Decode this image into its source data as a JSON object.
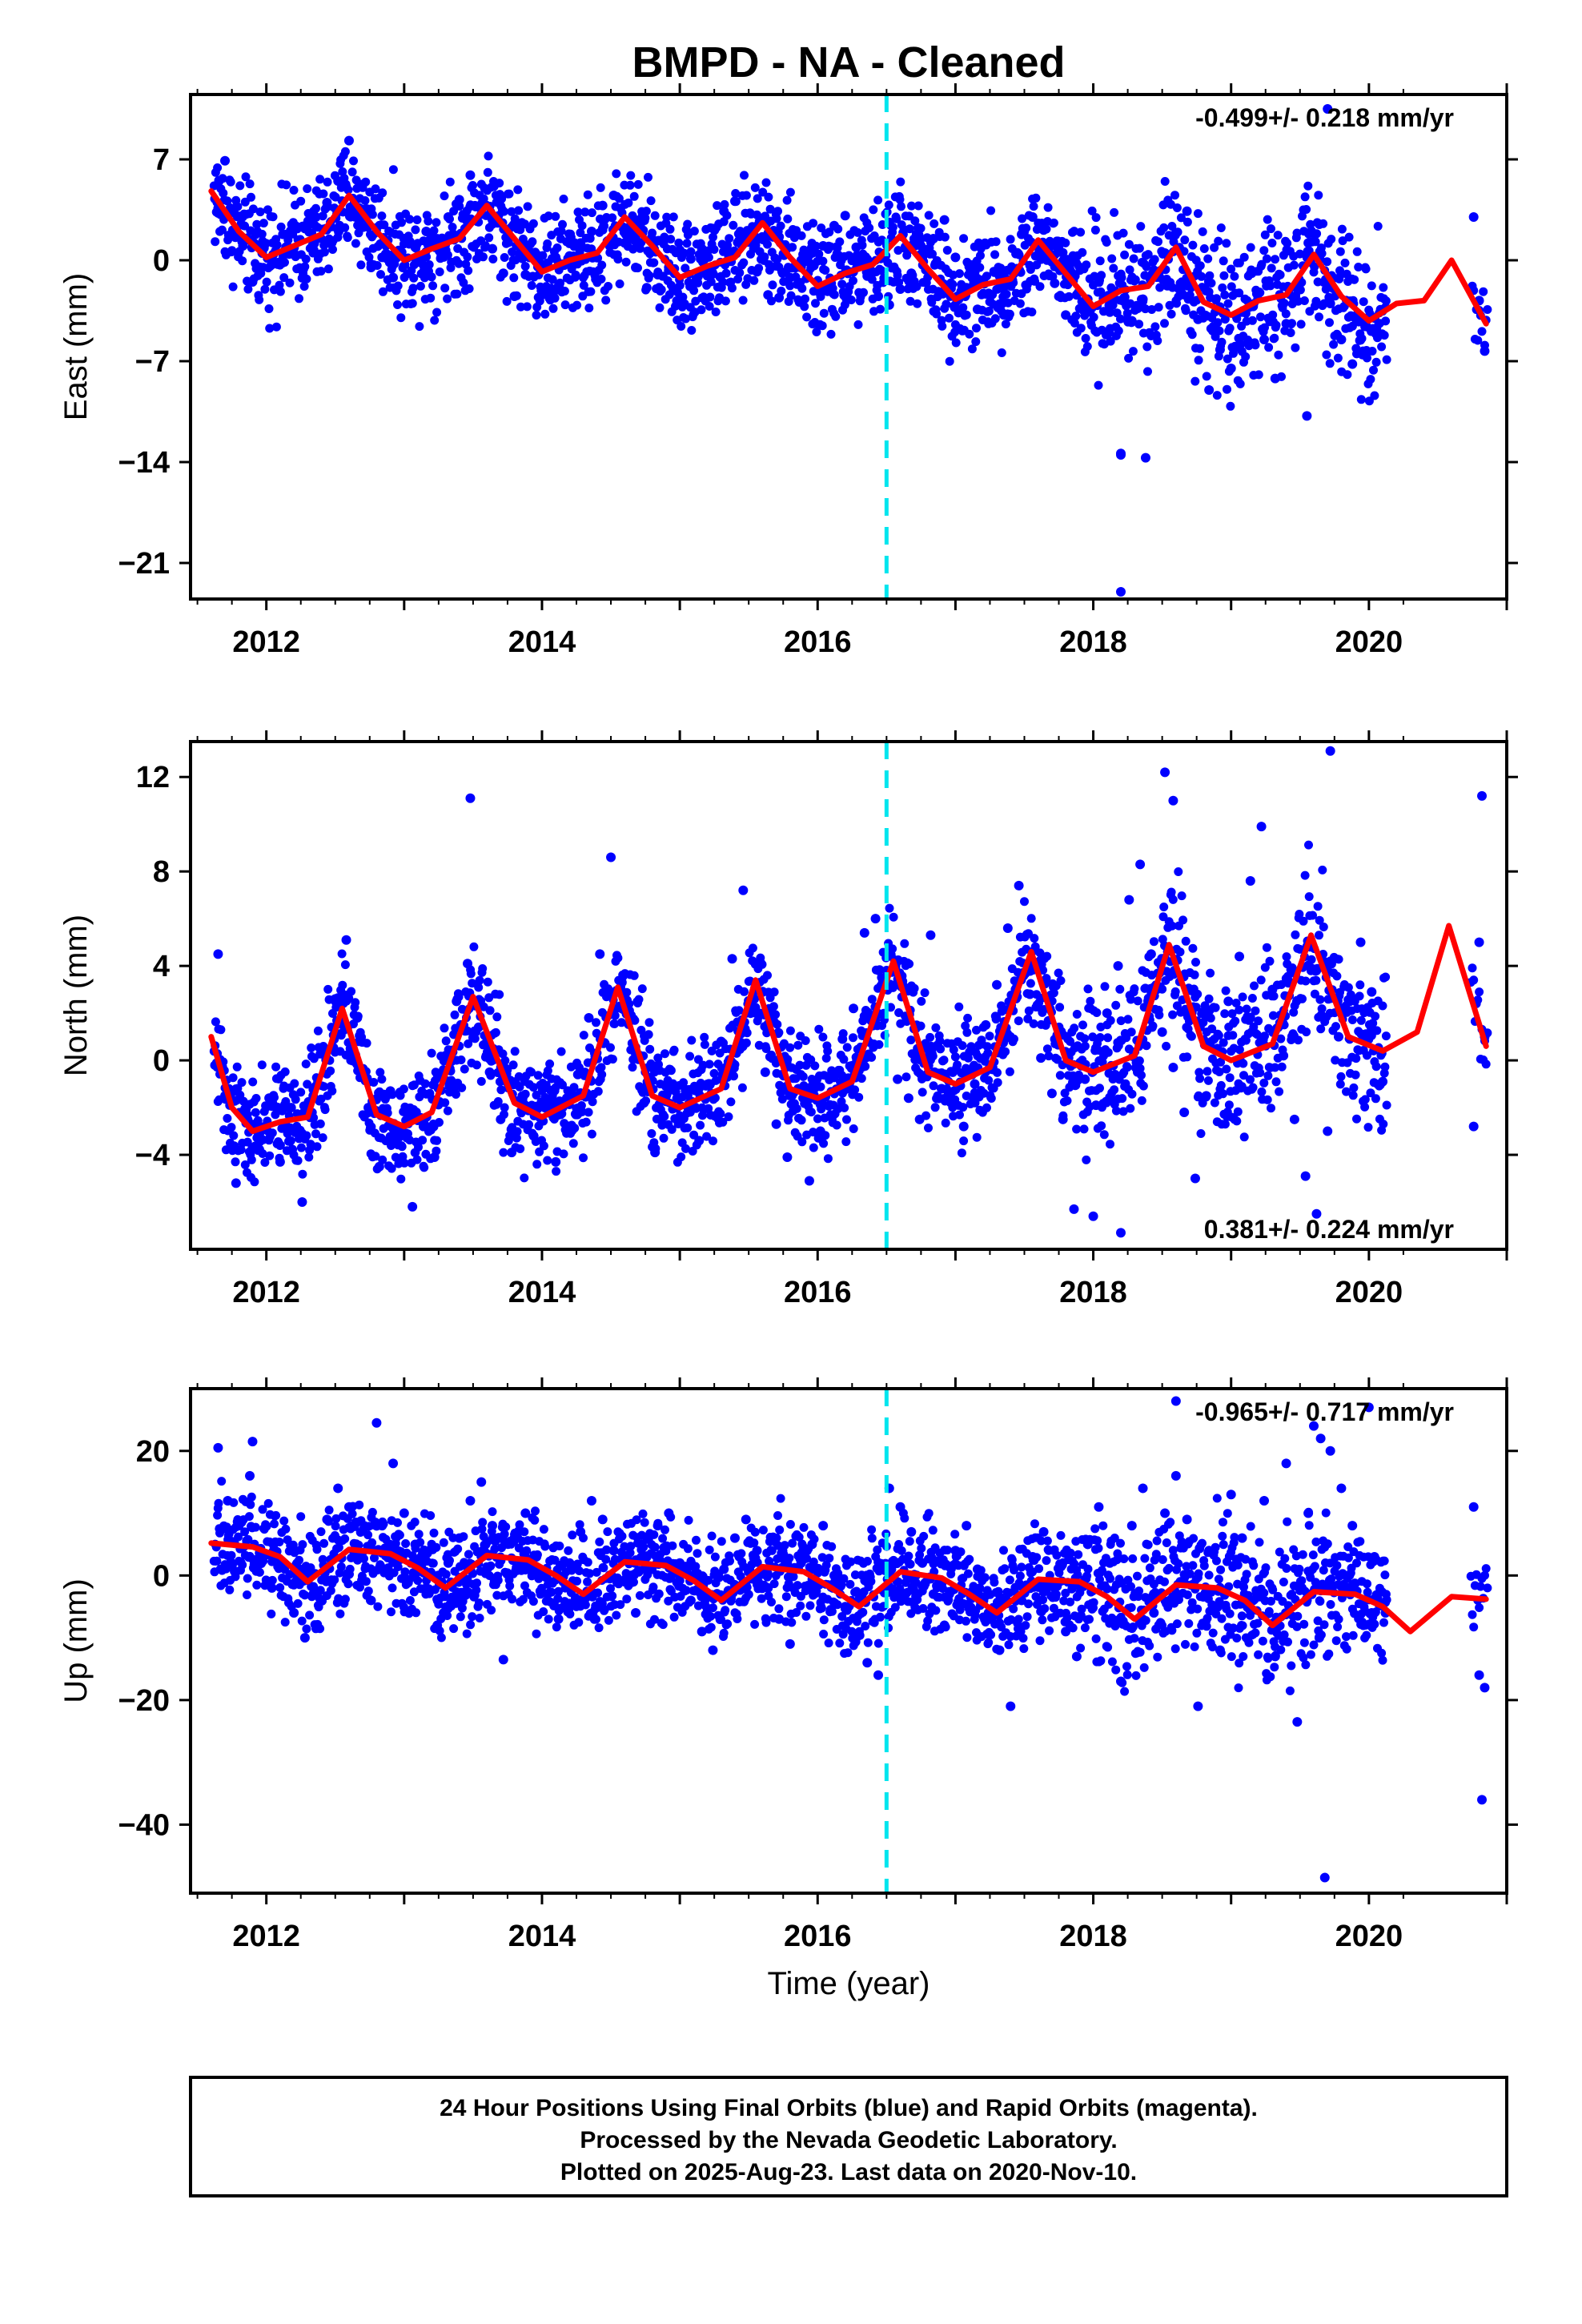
{
  "title": "BMPD  - NA - Cleaned",
  "colors": {
    "final_orbit_points": "#0000ff",
    "model_curve": "#ff0000",
    "event_line": "#00e5ee",
    "axes": "#000000"
  },
  "chart_data": [
    {
      "type": "scatter",
      "id": "east",
      "ylabel": "East (mm)",
      "xlabel": "",
      "xlim": [
        2011.45,
        2021.0
      ],
      "ylim": [
        -23.5,
        11.5
      ],
      "yticks": [
        7,
        0,
        -7,
        -14,
        -21
      ],
      "ytick_labels": [
        "7",
        "0",
        "−7",
        "−14",
        "−21"
      ],
      "xticks": [
        2012,
        2014,
        2016,
        2018,
        2020
      ],
      "xtick_labels": [
        "2012",
        "2014",
        "2016",
        "2018",
        "2020"
      ],
      "rate_text": "-0.499+/- 0.218 mm/yr",
      "rate_position": "top-right",
      "event_line_x": 2016.5,
      "model": {
        "x": [
          2011.6,
          2011.8,
          2012.0,
          2012.2,
          2012.4,
          2012.6,
          2012.8,
          2013.0,
          2013.2,
          2013.4,
          2013.6,
          2013.8,
          2014.0,
          2014.2,
          2014.4,
          2014.6,
          2014.8,
          2015.0,
          2015.2,
          2015.4,
          2015.6,
          2015.8,
          2016.0,
          2016.2,
          2016.4,
          2016.6,
          2016.8,
          2017.0,
          2017.2,
          2017.4,
          2017.6,
          2017.8,
          2018.0,
          2018.2,
          2018.4,
          2018.6,
          2018.8,
          2019.0,
          2019.2,
          2019.4,
          2019.6,
          2019.8,
          2020.0,
          2020.2,
          2020.4,
          2020.6,
          2020.85
        ],
        "y": [
          4.8,
          2.0,
          0.2,
          1.0,
          1.8,
          4.5,
          2.0,
          0.0,
          0.8,
          1.5,
          3.8,
          1.5,
          -0.8,
          0.0,
          0.5,
          3.0,
          1.0,
          -1.2,
          -0.4,
          0.2,
          2.6,
          0.2,
          -1.8,
          -0.9,
          -0.3,
          1.7,
          -0.6,
          -2.7,
          -1.7,
          -1.3,
          1.4,
          -0.9,
          -3.2,
          -2.1,
          -1.8,
          0.9,
          -2.9,
          -3.8,
          -2.8,
          -2.4,
          0.4,
          -2.5,
          -4.2,
          -3.0,
          -2.8,
          0.0,
          -4.4
        ]
      },
      "points": {
        "x": [
          2011.65,
          2011.7,
          2011.76,
          2011.83,
          2011.9,
          2011.97,
          2012.05,
          2012.12,
          2012.2,
          2012.28,
          2012.36,
          2012.44,
          2012.52,
          2012.6,
          2012.68,
          2012.76,
          2012.84,
          2012.92,
          2013.0,
          2013.08,
          2013.16,
          2013.24,
          2013.32,
          2013.4,
          2013.48,
          2013.56,
          2013.64,
          2013.72,
          2013.8,
          2013.88,
          2013.96,
          2014.04,
          2014.12,
          2014.2,
          2014.28,
          2014.36,
          2014.44,
          2014.52,
          2014.6,
          2014.68,
          2014.76,
          2014.84,
          2014.92,
          2015.0,
          2015.08,
          2015.16,
          2015.24,
          2015.32,
          2015.4,
          2015.48,
          2015.56,
          2015.64,
          2015.72,
          2015.8,
          2015.88,
          2015.96,
          2016.04,
          2016.12,
          2016.2,
          2016.28,
          2016.36,
          2016.44,
          2016.52,
          2016.6,
          2016.68,
          2016.76,
          2016.84,
          2016.92,
          2017.0,
          2017.08,
          2017.16,
          2017.24,
          2017.32,
          2017.4,
          2017.48,
          2017.56,
          2017.64,
          2017.72,
          2017.8,
          2017.88,
          2017.96,
          2018.04,
          2018.12,
          2018.2,
          2018.28,
          2018.36,
          2018.44,
          2018.52,
          2018.6,
          2018.68,
          2018.76,
          2018.84,
          2018.92,
          2019.0,
          2019.08,
          2019.16,
          2019.24,
          2019.32,
          2019.4,
          2019.48,
          2019.56,
          2019.64,
          2019.72,
          2019.8,
          2019.88,
          2019.96,
          2020.04,
          2020.12,
          2020.76,
          2020.8,
          2020.84
        ],
        "y": [
          3.6,
          6.9,
          2.0,
          1.0,
          -1.5,
          0.5,
          0.4,
          1.8,
          0.5,
          2.2,
          3.0,
          4.0,
          5.5,
          8.3,
          3.1,
          -0.5,
          0.2,
          -1.2,
          1.5,
          0.9,
          2.0,
          1.1,
          3.0,
          4.2,
          5.9,
          3.2,
          0.8,
          -0.9,
          -2.5,
          -1.0,
          0.4,
          -0.2,
          -1.8,
          0.3,
          1.2,
          2.0,
          3.8,
          4.5,
          1.2,
          -0.5,
          -1.9,
          -1.0,
          -0.5,
          0.7,
          0.1,
          0.8,
          2.2,
          3.4,
          4.1,
          1.3,
          -0.8,
          -2.4,
          -2.6,
          -1.2,
          -0.5,
          0.5,
          1.0,
          2.4,
          3.1,
          0.9,
          -1.1,
          -2.5,
          -3.1,
          -2.0,
          -0.9,
          0.2,
          1.5,
          2.8,
          0.2,
          -1.9,
          -3.4,
          -2.3,
          -1.1,
          -0.7,
          1.8,
          3.0,
          2.1,
          -1.6,
          -3.8,
          -2.4,
          -2.7,
          -1.5,
          -3.6,
          -13.5,
          -4.2,
          -2.7,
          -1.1,
          0.5,
          1.9,
          3.4,
          -4.1,
          -9.0,
          -6.2,
          -7.5,
          -3.6,
          -3.2,
          -5.5,
          -8.2,
          -4.4,
          -1.8,
          1.2,
          2.5,
          -3.0,
          -5.5,
          -7.2,
          -4.1,
          -4.0,
          -3.3,
          3.0,
          -2.8,
          -6.3
        ]
      },
      "outlier_points": {
        "x": [
          2018.2,
          2018.38,
          2018.2,
          2019.7,
          2019.55
        ],
        "y": [
          -13.4,
          -13.7,
          -23.0,
          10.5,
          -10.8
        ]
      }
    },
    {
      "type": "scatter",
      "id": "north",
      "ylabel": "North (mm)",
      "xlabel": "",
      "xlim": [
        2011.45,
        2021.0
      ],
      "ylim": [
        -8.0,
        13.5
      ],
      "yticks": [
        12,
        8,
        4,
        0,
        -4
      ],
      "ytick_labels": [
        "12",
        "8",
        "4",
        "0",
        "−4"
      ],
      "xticks": [
        2012,
        2014,
        2016,
        2018,
        2020
      ],
      "xtick_labels": [
        "2012",
        "2014",
        "2016",
        "2018",
        "2020"
      ],
      "rate_text": "0.381+/- 0.224 mm/yr",
      "rate_position": "bottom-right",
      "event_line_x": 2016.5,
      "model": {
        "x": [
          2011.6,
          2011.75,
          2011.9,
          2012.1,
          2012.3,
          2012.55,
          2012.8,
          2013.0,
          2013.2,
          2013.5,
          2013.8,
          2014.0,
          2014.3,
          2014.55,
          2014.8,
          2015.0,
          2015.3,
          2015.55,
          2015.8,
          2016.0,
          2016.25,
          2016.55,
          2016.8,
          2017.0,
          2017.25,
          2017.55,
          2017.8,
          2018.0,
          2018.3,
          2018.55,
          2018.8,
          2019.0,
          2019.3,
          2019.58,
          2019.85,
          2020.1,
          2020.35,
          2020.58,
          2020.85
        ],
        "y": [
          1.0,
          -2.0,
          -3.0,
          -2.6,
          -2.4,
          2.2,
          -2.3,
          -2.8,
          -2.2,
          2.7,
          -1.8,
          -2.4,
          -1.5,
          3.1,
          -1.5,
          -2.0,
          -1.2,
          3.4,
          -1.2,
          -1.6,
          -0.9,
          4.2,
          -0.5,
          -1.0,
          -0.3,
          4.6,
          0.0,
          -0.5,
          0.2,
          4.9,
          0.6,
          0.0,
          0.7,
          5.3,
          1.0,
          0.4,
          1.2,
          5.7,
          0.6
        ]
      },
      "points": {
        "x": [
          2011.65,
          2011.7,
          2011.78,
          2011.86,
          2011.94,
          2012.02,
          2012.1,
          2012.18,
          2012.26,
          2012.34,
          2012.42,
          2012.5,
          2012.58,
          2012.66,
          2012.74,
          2012.82,
          2012.9,
          2012.98,
          2013.06,
          2013.14,
          2013.22,
          2013.3,
          2013.38,
          2013.46,
          2013.54,
          2013.62,
          2013.7,
          2013.78,
          2013.86,
          2013.94,
          2014.02,
          2014.1,
          2014.18,
          2014.26,
          2014.34,
          2014.42,
          2014.5,
          2014.58,
          2014.66,
          2014.74,
          2014.82,
          2014.9,
          2014.98,
          2015.06,
          2015.14,
          2015.22,
          2015.3,
          2015.38,
          2015.46,
          2015.54,
          2015.62,
          2015.7,
          2015.78,
          2015.86,
          2015.94,
          2016.02,
          2016.1,
          2016.18,
          2016.26,
          2016.34,
          2016.42,
          2016.5,
          2016.58,
          2016.66,
          2016.74,
          2016.82,
          2016.9,
          2016.98,
          2017.06,
          2017.14,
          2017.22,
          2017.3,
          2017.38,
          2017.46,
          2017.54,
          2017.62,
          2017.7,
          2017.78,
          2017.86,
          2017.94,
          2018.02,
          2018.1,
          2018.18,
          2018.26,
          2018.34,
          2018.42,
          2018.5,
          2018.58,
          2018.66,
          2018.74,
          2018.82,
          2018.9,
          2018.98,
          2019.06,
          2019.14,
          2019.22,
          2019.3,
          2019.38,
          2019.46,
          2019.54,
          2019.62,
          2019.7,
          2019.78,
          2019.86,
          2019.94,
          2020.02,
          2020.1,
          2020.76,
          2020.8,
          2020.84
        ],
        "y": [
          4.5,
          -1.5,
          -5.2,
          -2.3,
          -3.8,
          -1.6,
          -4.3,
          -2.0,
          -6.0,
          -1.5,
          0.4,
          2.6,
          5.1,
          1.8,
          -2.0,
          -4.5,
          -1.3,
          -3.0,
          -6.2,
          -2.8,
          -4.1,
          0.2,
          2.5,
          4.1,
          1.4,
          -0.5,
          -2.5,
          -3.9,
          -1.6,
          -3.2,
          -2.0,
          -4.3,
          -1.6,
          -0.6,
          1.8,
          4.5,
          8.6,
          3.3,
          0.5,
          -1.8,
          -3.9,
          -1.1,
          -2.5,
          -2.0,
          -3.4,
          -1.0,
          0.8,
          4.3,
          7.2,
          2.6,
          -0.5,
          -2.7,
          -4.1,
          -1.2,
          -5.1,
          -3.0,
          -0.6,
          0.9,
          2.2,
          5.4,
          6.0,
          3.8,
          -0.8,
          -1.6,
          -2.5,
          5.3,
          -1.2,
          -0.5,
          -2.8,
          -1.0,
          1.5,
          3.2,
          5.6,
          7.4,
          2.8,
          0.1,
          -1.4,
          -2.5,
          -6.3,
          -0.8,
          -1.9,
          2.0,
          4.0,
          6.8,
          8.3,
          4.5,
          1.2,
          -0.3,
          -2.2,
          -5.0,
          -1.5,
          0.5,
          2.5,
          4.4,
          7.6,
          9.9,
          3.0,
          0.2,
          -2.5,
          -4.9,
          -6.5,
          -3.0,
          1.0,
          2.5,
          5.0,
          2.9,
          -0.9,
          -2.8,
          5.0,
          1.0
        ]
      },
      "outlier_points": {
        "x": [
          2013.48,
          2018.52,
          2018.58,
          2019.72,
          2020.82,
          2018.0,
          2018.2
        ],
        "y": [
          11.1,
          12.2,
          11.0,
          13.1,
          11.2,
          -6.6,
          -7.3
        ]
      }
    },
    {
      "type": "scatter",
      "id": "up",
      "ylabel": "Up (mm)",
      "xlabel": "Time (year)",
      "xlim": [
        2011.45,
        2021.0
      ],
      "ylim": [
        -51.0,
        30.0
      ],
      "yticks": [
        20,
        0,
        -20,
        -40
      ],
      "ytick_labels": [
        "20",
        "0",
        "−20",
        "−40"
      ],
      "xticks": [
        2012,
        2014,
        2016,
        2018,
        2020
      ],
      "xtick_labels": [
        "2012",
        "2014",
        "2016",
        "2018",
        "2020"
      ],
      "rate_text": "-0.965+/- 0.717 mm/yr",
      "rate_position": "top-right",
      "event_line_x": 2016.5,
      "model": {
        "x": [
          2011.6,
          2011.9,
          2012.1,
          2012.3,
          2012.6,
          2012.9,
          2013.1,
          2013.3,
          2013.6,
          2013.9,
          2014.1,
          2014.3,
          2014.6,
          2014.9,
          2015.1,
          2015.3,
          2015.6,
          2015.9,
          2016.1,
          2016.3,
          2016.6,
          2016.9,
          2017.1,
          2017.3,
          2017.6,
          2017.9,
          2018.1,
          2018.3,
          2018.6,
          2018.9,
          2019.1,
          2019.3,
          2019.6,
          2019.9,
          2020.1,
          2020.3,
          2020.6,
          2020.85
        ],
        "y": [
          5.2,
          4.6,
          3.0,
          -1.0,
          4.2,
          3.5,
          1.2,
          -2.0,
          3.2,
          2.5,
          0.0,
          -3.0,
          2.2,
          1.6,
          -0.8,
          -4.0,
          1.4,
          0.6,
          -2.0,
          -5.0,
          0.6,
          -0.4,
          -3.0,
          -6.0,
          -0.6,
          -1.0,
          -3.4,
          -7.0,
          -1.5,
          -2.0,
          -4.0,
          -8.0,
          -2.6,
          -3.0,
          -5.0,
          -9.0,
          -3.4,
          -3.8
        ]
      },
      "points": {
        "x": [
          2011.65,
          2011.72,
          2011.8,
          2011.88,
          2011.96,
          2012.04,
          2012.12,
          2012.2,
          2012.28,
          2012.36,
          2012.44,
          2012.52,
          2012.6,
          2012.68,
          2012.76,
          2012.84,
          2012.92,
          2013.0,
          2013.08,
          2013.16,
          2013.24,
          2013.32,
          2013.4,
          2013.48,
          2013.56,
          2013.64,
          2013.72,
          2013.8,
          2013.88,
          2013.96,
          2014.04,
          2014.12,
          2014.2,
          2014.28,
          2014.36,
          2014.44,
          2014.52,
          2014.6,
          2014.68,
          2014.76,
          2014.84,
          2014.92,
          2015.0,
          2015.08,
          2015.16,
          2015.24,
          2015.32,
          2015.4,
          2015.48,
          2015.56,
          2015.64,
          2015.72,
          2015.8,
          2015.88,
          2015.96,
          2016.04,
          2016.12,
          2016.2,
          2016.28,
          2016.36,
          2016.44,
          2016.52,
          2016.6,
          2016.68,
          2016.76,
          2016.84,
          2016.92,
          2017.0,
          2017.08,
          2017.16,
          2017.24,
          2017.32,
          2017.4,
          2017.48,
          2017.56,
          2017.64,
          2017.72,
          2017.8,
          2017.88,
          2017.96,
          2018.04,
          2018.12,
          2018.2,
          2018.28,
          2018.36,
          2018.44,
          2018.52,
          2018.6,
          2018.68,
          2018.76,
          2018.84,
          2018.92,
          2019.0,
          2019.08,
          2019.16,
          2019.24,
          2019.32,
          2019.4,
          2019.48,
          2019.56,
          2019.64,
          2019.72,
          2019.8,
          2019.88,
          2019.96,
          2020.04,
          2020.12,
          2020.76,
          2020.8,
          2020.84
        ],
        "y": [
          20.5,
          12.0,
          8.0,
          16.0,
          3.0,
          -2.0,
          2.0,
          -6.0,
          -10.0,
          -3.0,
          9.0,
          14.0,
          11.0,
          3.0,
          -4.0,
          8.0,
          18.0,
          10.0,
          5.0,
          -2.0,
          -8.0,
          2.0,
          6.0,
          12.0,
          15.0,
          8.0,
          -13.5,
          6.0,
          10.0,
          3.0,
          -3.0,
          -7.0,
          2.0,
          7.0,
          12.0,
          9.0,
          4.0,
          -1.0,
          -6.0,
          3.0,
          8.0,
          10.0,
          2.0,
          -4.0,
          -9.0,
          -12.0,
          1.0,
          6.0,
          9.0,
          4.0,
          -2.0,
          -7.0,
          -11.0,
          2.0,
          5.0,
          8.0,
          0.0,
          -5.0,
          -10.0,
          -14.0,
          -16.0,
          14.0,
          11.0,
          7.0,
          2.0,
          -3.0,
          -8.0,
          4.0,
          8.0,
          1.0,
          -6.0,
          -12.0,
          -21.0,
          -4.0,
          3.0,
          7.0,
          -2.0,
          -9.0,
          -13.0,
          5.0,
          11.0,
          2.0,
          -17.0,
          8.0,
          14.0,
          -6.0,
          10.0,
          16.0,
          9.0,
          -21.0,
          4.0,
          -12.0,
          13.0,
          6.0,
          -4.0,
          12.0,
          -13.0,
          18.0,
          -23.5,
          10.0,
          -10.0,
          20.0,
          14.0,
          8.0,
          -8.0,
          3.0,
          -6.0,
          11.0,
          -16.0,
          -18.0
        ]
      },
      "outlier_points": {
        "x": [
          2011.9,
          2012.8,
          2018.6,
          2019.6,
          2019.65,
          2020.0,
          2020.82,
          2019.68
        ],
        "y": [
          21.5,
          24.5,
          28.0,
          24.0,
          22.0,
          27.0,
          -36.0,
          -48.5
        ]
      }
    }
  ],
  "footer": {
    "line1": "24 Hour Positions Using Final Orbits (blue) and Rapid Orbits (magenta).",
    "line2": "Processed by the Nevada Geodetic Laboratory.",
    "line3": "Plotted on 2025-Aug-23. Last data on 2020-Nov-10."
  }
}
